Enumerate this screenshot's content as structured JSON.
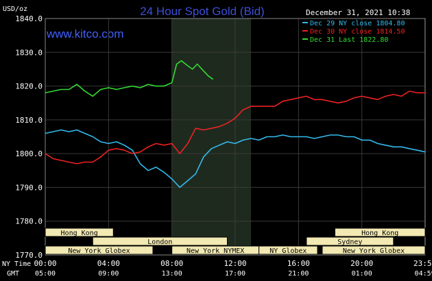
{
  "chart_data": {
    "type": "line",
    "title": "24 Hour Spot Gold (Bid)",
    "site": "www.kitco.com",
    "timestamp": "December 31, 2021 10:38",
    "ylabel": "USD/oz",
    "ylim": [
      1770,
      1840
    ],
    "yticks": [
      1770,
      1780,
      1790,
      1800,
      1810,
      1820,
      1830,
      1840
    ],
    "ytick_labels": [
      "1770.0",
      "1780.0",
      "1790.0",
      "1800.0",
      "1810.0",
      "1820.0",
      "1830.0",
      "1840.0"
    ],
    "xlim": [
      0,
      24
    ],
    "xticks": [
      0,
      4,
      8,
      12,
      16,
      20,
      23.983
    ],
    "xtick_labels": [
      "00:00",
      "04:00",
      "08:00",
      "12:00",
      "16:00",
      "20:00",
      "23:59"
    ],
    "gmt_labels": [
      "05:00",
      "09:00",
      "13:00",
      "17:00",
      "21:00",
      "01:00",
      "04:59"
    ],
    "x_axis_row_labels": {
      "ny": "NY Time",
      "gmt": "GMT"
    },
    "shaded_range": [
      8,
      13
    ],
    "legend_position": "top-right",
    "grid": true,
    "series": [
      {
        "name": "Dec 29 NY close 1804.80",
        "color": "#33bbee",
        "x": [
          0,
          0.5,
          1,
          1.5,
          2,
          2.5,
          3,
          3.5,
          4,
          4.5,
          5,
          5.5,
          6,
          6.5,
          7,
          7.5,
          8,
          8.5,
          9,
          9.5,
          10,
          10.5,
          11,
          11.5,
          12,
          12.5,
          13,
          13.5,
          14,
          14.5,
          15,
          15.5,
          16,
          16.5,
          17,
          17.5,
          18,
          18.5,
          19,
          19.5,
          20,
          20.5,
          21,
          21.5,
          22,
          22.5,
          23,
          23.5,
          24
        ],
        "values": [
          1806,
          1806.5,
          1807,
          1806.5,
          1807,
          1806,
          1805,
          1803.5,
          1803,
          1803.5,
          1802.5,
          1801,
          1797,
          1795,
          1796,
          1794.5,
          1792.5,
          1790,
          1792,
          1794,
          1799,
          1801.5,
          1802.5,
          1803.5,
          1803,
          1804,
          1804.5,
          1804,
          1805,
          1805,
          1805.5,
          1805,
          1805,
          1805,
          1804.5,
          1805,
          1805.5,
          1805.5,
          1805,
          1805,
          1804,
          1804,
          1803,
          1802.5,
          1802,
          1802,
          1801.5,
          1801,
          1800.5
        ]
      },
      {
        "name": "Dec 30 NY close 1814.50",
        "color": "#ee2222",
        "x": [
          0,
          0.5,
          1,
          1.5,
          2,
          2.5,
          3,
          3.5,
          4,
          4.5,
          5,
          5.5,
          6,
          6.5,
          7,
          7.5,
          8,
          8.5,
          9,
          9.5,
          10,
          10.5,
          11,
          11.5,
          12,
          12.5,
          13,
          13.5,
          14,
          14.5,
          15,
          15.5,
          16,
          16.5,
          17,
          17.5,
          18,
          18.5,
          19,
          19.5,
          20,
          20.5,
          21,
          21.5,
          22,
          22.5,
          23,
          23.5,
          24
        ],
        "values": [
          1800,
          1798.5,
          1798,
          1797.5,
          1797,
          1797.5,
          1797.5,
          1799,
          1801,
          1801.5,
          1801,
          1800,
          1800.5,
          1802,
          1803,
          1802.5,
          1803,
          1800,
          1803,
          1807.5,
          1807,
          1807.5,
          1808,
          1809,
          1810.5,
          1813,
          1814,
          1814,
          1814,
          1814,
          1815.5,
          1816,
          1816.5,
          1817,
          1816,
          1816,
          1815.5,
          1815,
          1815.5,
          1816.5,
          1817,
          1816.5,
          1816,
          1817,
          1817.5,
          1817,
          1818.5,
          1818,
          1818
        ]
      },
      {
        "name": "Dec 31 Last 1822.80",
        "color": "#33dd33",
        "x": [
          0,
          0.5,
          1,
          1.5,
          2,
          2.5,
          3,
          3.5,
          4,
          4.5,
          5,
          5.5,
          6,
          6.5,
          7,
          7.5,
          8,
          8.3,
          8.6,
          9,
          9.3,
          9.6,
          10,
          10.3,
          10.6
        ],
        "values": [
          1818,
          1818.5,
          1819,
          1819,
          1820.5,
          1818.5,
          1817,
          1819,
          1819.5,
          1819,
          1819.5,
          1820,
          1819.5,
          1820.5,
          1820,
          1820,
          1821,
          1826.5,
          1827.5,
          1826,
          1825,
          1826.5,
          1824.5,
          1823,
          1822
        ]
      }
    ],
    "sessions": [
      {
        "label": "Hong Kong",
        "start": 0,
        "end": 4.3,
        "row": 0
      },
      {
        "label": "Hong Kong",
        "start": 18.3,
        "end": 24,
        "row": 0
      },
      {
        "label": "London",
        "start": 3,
        "end": 11.5,
        "row": 1
      },
      {
        "label": "Sydney",
        "start": 16.5,
        "end": 22,
        "row": 1
      },
      {
        "label": "New York Globex",
        "start": 0,
        "end": 6.8,
        "row": 2
      },
      {
        "label": "New York NYMEX",
        "start": 8,
        "end": 13.5,
        "row": 2
      },
      {
        "label": "NY Globex",
        "start": 13.5,
        "end": 17.2,
        "row": 2
      },
      {
        "label": "New York Globex",
        "start": 17.5,
        "end": 24,
        "row": 2
      }
    ]
  }
}
